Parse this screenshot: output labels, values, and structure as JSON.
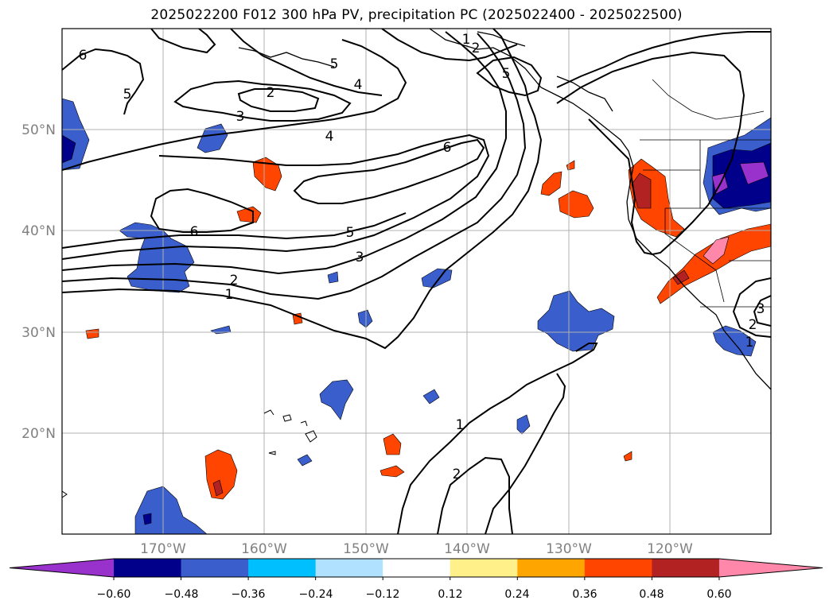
{
  "title": "2025022200 F012 300 hPa PV, precipitation PC (2025022400 - 2025022500)",
  "lat_labels": [
    "50°N",
    "40°N",
    "30°N",
    "20°N"
  ],
  "lon_labels": [
    "170°W",
    "160°W",
    "150°W",
    "140°W",
    "130°W",
    "120°W"
  ],
  "colorbar": {
    "ticks": [
      "−0.60",
      "−0.48",
      "−0.36",
      "−0.24",
      "−0.12",
      "0.12",
      "0.24",
      "0.36",
      "0.48",
      "0.60"
    ],
    "colors": [
      "#9932cc",
      "#00008b",
      "#3a5fcd",
      "#00bfff",
      "#b0e2ff",
      "#ffffff",
      "#fff08a",
      "#ffa500",
      "#ff4500",
      "#b22222",
      "#ff88aa"
    ]
  },
  "pv_contour_labels": [
    "6",
    "5",
    "5",
    "4",
    "2",
    "3",
    "4",
    "6",
    "6",
    "5",
    "3",
    "2",
    "1",
    "1",
    "2",
    "5",
    "1",
    "2",
    "2",
    "3",
    "1"
  ],
  "colors": {
    "gridline": "#b0b0b0",
    "contour": "#000000",
    "tick_label": "#808080"
  }
}
